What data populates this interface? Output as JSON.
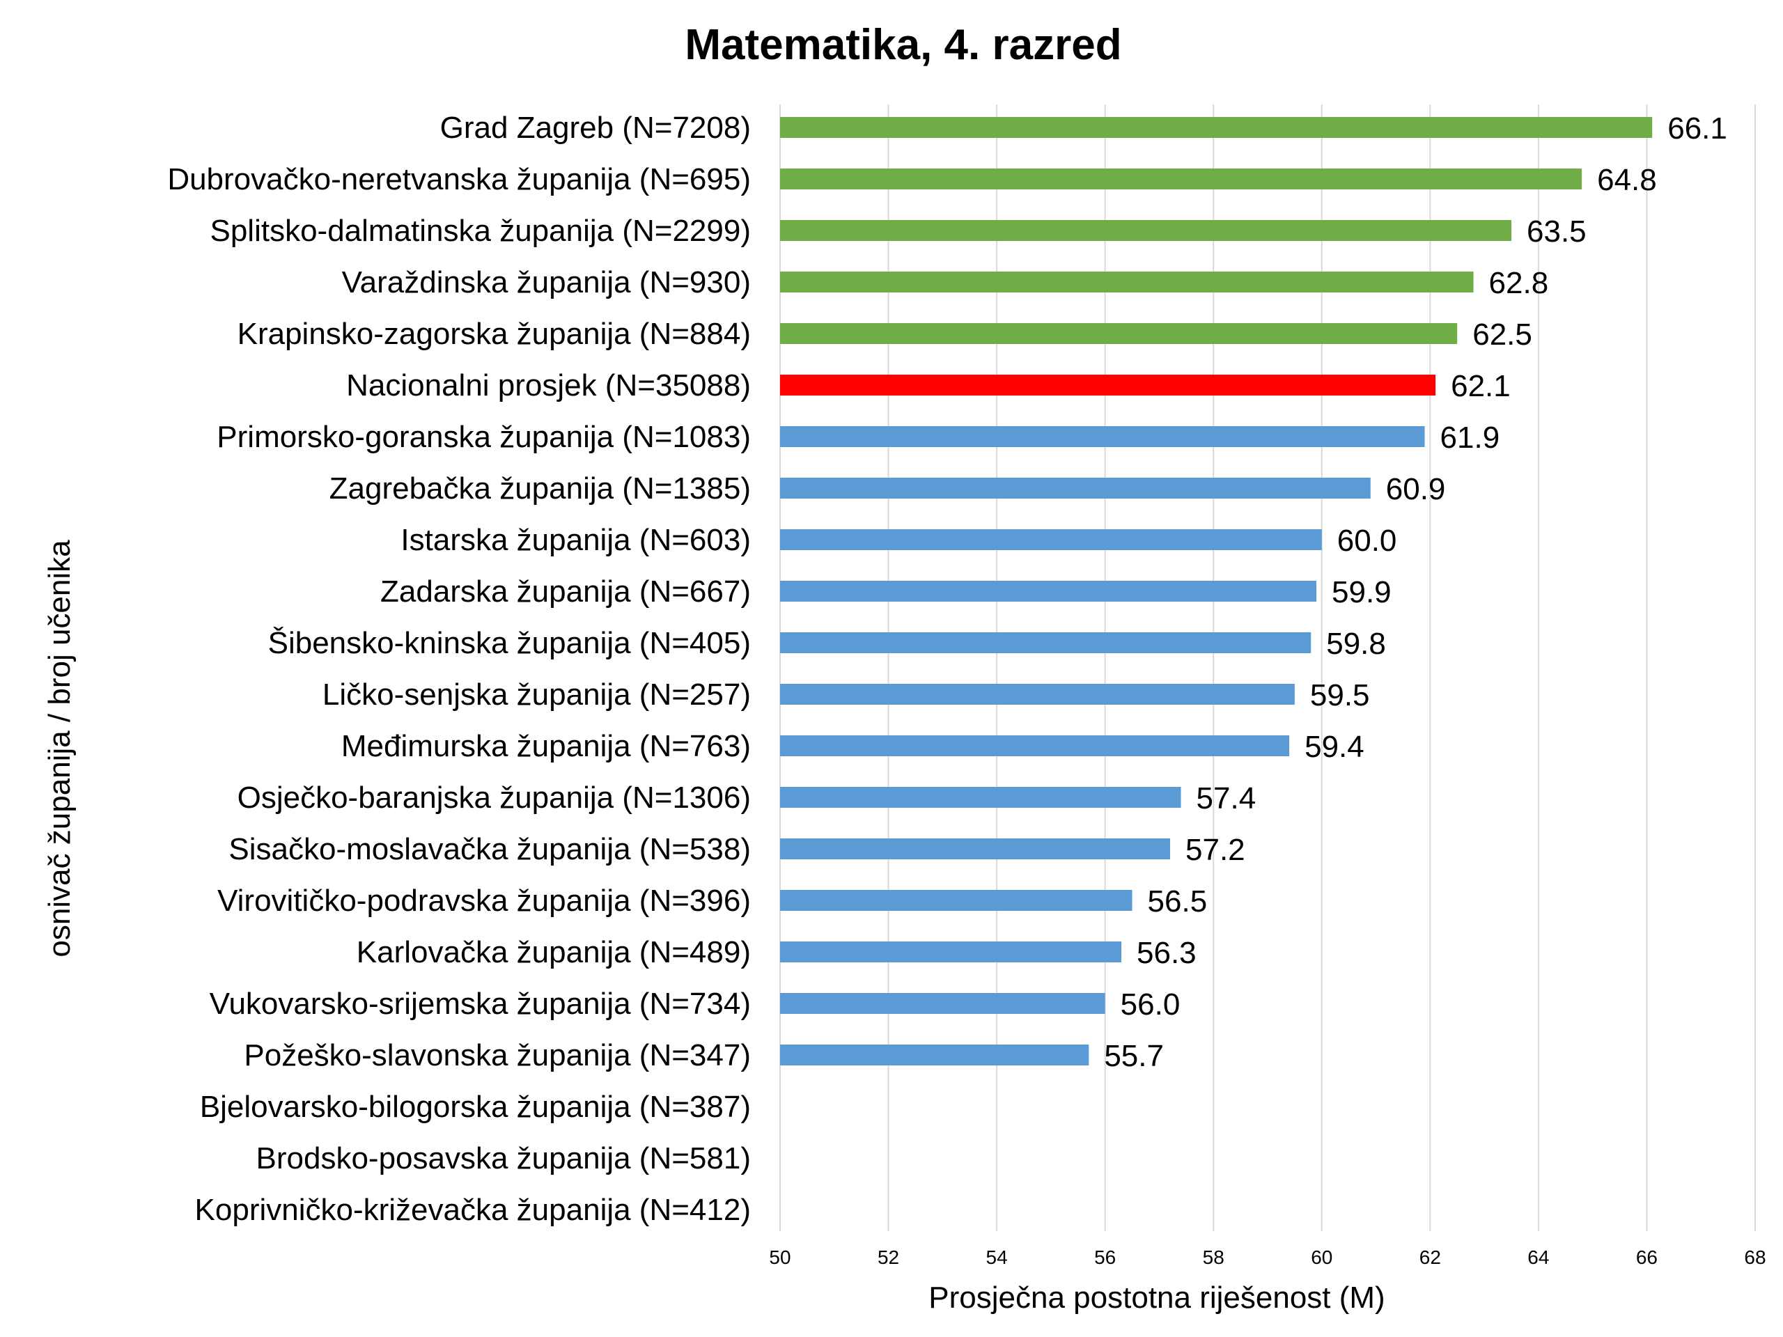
{
  "chart_data": {
    "type": "bar",
    "orientation": "horizontal",
    "title": "Matematika, 4. razred",
    "xlabel": "Prosječna postotna riješenost (M)",
    "ylabel": "osnivač županija / broj učenika",
    "xlim": [
      50,
      68
    ],
    "xticks": [
      "50",
      "52",
      "54",
      "56",
      "58",
      "60",
      "62",
      "64",
      "66",
      "68"
    ],
    "grid": true,
    "legend": "none",
    "colors": {
      "above": "#70ad47",
      "national": "#ff0000",
      "below": "#5b9bd5",
      "text": "#000000",
      "national_text": "#ff0000"
    },
    "categories": [
      "Grad Zagreb (N=7208)",
      "Dubrovačko-neretvanska županija (N=695)",
      "Splitsko-dalmatinska županija (N=2299)",
      "Varaždinska županija (N=930)",
      "Krapinsko-zagorska županija (N=884)",
      "Nacionalni prosjek (N=35088)",
      "Primorsko-goranska županija (N=1083)",
      "Zagrebačka županija (N=1385)",
      "Istarska županija (N=603)",
      "Zadarska županija (N=667)",
      "Šibensko-kninska županija (N=405)",
      "Ličko-senjska županija (N=257)",
      "Međimurska županija (N=763)",
      "Osječko-baranjska županija (N=1306)",
      "Sisačko-moslavačka županija (N=538)",
      "Virovitičko-podravska županija (N=396)",
      "Karlovačka županija (N=489)",
      "Vukovarsko-srijemska županija (N=734)",
      "Požeško-slavonska županija (N=347)",
      "Bjelovarsko-bilogorska županija (N=387)",
      "Brodsko-posavska županija (N=581)",
      "Koprivničko-križevačka županija (N=412)"
    ],
    "values": [
      66.1,
      64.8,
      63.5,
      62.8,
      62.5,
      62.1,
      61.9,
      60.9,
      60.0,
      59.9,
      59.8,
      59.5,
      59.4,
      57.4,
      57.2,
      56.5,
      56.3,
      56.0,
      55.7,
      null,
      null,
      null
    ],
    "value_labels": [
      "66.1",
      "64.8",
      "63.5",
      "62.8",
      "62.5",
      "62.1",
      "61.9",
      "60.9",
      "60.0",
      "59.9",
      "59.8",
      "59.5",
      "59.4",
      "57.4",
      "57.2",
      "56.5",
      "56.3",
      "56.0",
      "55.7",
      "",
      "",
      ""
    ],
    "groups": [
      "above",
      "above",
      "above",
      "above",
      "above",
      "national",
      "below",
      "below",
      "below",
      "below",
      "below",
      "below",
      "below",
      "below",
      "below",
      "below",
      "below",
      "below",
      "below",
      "below",
      "below",
      "below"
    ]
  }
}
